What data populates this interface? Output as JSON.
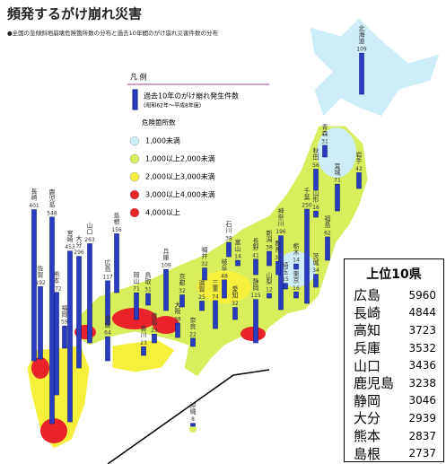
{
  "header": {
    "title": "頻発するがけ崩れ災害",
    "subtitle": "●全国の急傾斜地崩壊危険箇所数の分布と過去10年間のがけ崩れ災害件数の分布"
  },
  "legend": {
    "title": "凡 例",
    "bar_label": "過去10年のがけ崩れ発生件数",
    "bar_period": "(昭和62年～平成8年度)",
    "class_title": "危険箇所数",
    "classes": [
      {
        "label": "1,000未満",
        "color": "#cdeef8"
      },
      {
        "label": "1,000以上2,000未満",
        "color": "#d8ee5c"
      },
      {
        "label": "2,000以上3,000未満",
        "color": "#f6f03c"
      },
      {
        "label": "3,000以上4,000未満",
        "color": "#e8232a"
      },
      {
        "label": "4,000以上",
        "color": "#e8232a"
      }
    ]
  },
  "prefectures": [
    {
      "name": "北海道",
      "value": 109
    },
    {
      "name": "青森",
      "value": 31
    },
    {
      "name": "秋田",
      "value": 56
    },
    {
      "name": "岩手",
      "value": 42
    },
    {
      "name": "宮城",
      "value": 71
    },
    {
      "name": "山形",
      "value": 16
    },
    {
      "name": "福島",
      "value": 62
    },
    {
      "name": "新潟",
      "value": 38
    },
    {
      "name": "神奈川",
      "value": 196
    },
    {
      "name": "千葉",
      "value": 250
    },
    {
      "name": "茨城",
      "value": 34
    },
    {
      "name": "栃木",
      "value": 14
    },
    {
      "name": "群馬",
      "value": 35
    },
    {
      "name": "埼玉",
      "value": 15
    },
    {
      "name": "東京",
      "value": 16
    },
    {
      "name": "長野",
      "value": 41
    },
    {
      "name": "山梨",
      "value": 12
    },
    {
      "name": "富山",
      "value": 14
    },
    {
      "name": "石川",
      "value": 38
    },
    {
      "name": "福井",
      "value": 32
    },
    {
      "name": "岐阜",
      "value": 48
    },
    {
      "name": "静岡",
      "value": 115
    },
    {
      "name": "愛知",
      "value": 32
    },
    {
      "name": "三重",
      "value": 74
    },
    {
      "name": "滋賀",
      "value": 25
    },
    {
      "name": "京都",
      "value": 32
    },
    {
      "name": "奈良",
      "value": 22
    },
    {
      "name": "大阪",
      "value": 38
    },
    {
      "name": "兵庫",
      "value": 109
    },
    {
      "name": "鳥取",
      "value": 31
    },
    {
      "name": "島根",
      "value": 156
    },
    {
      "name": "岡山",
      "value": 71
    },
    {
      "name": "広島",
      "value": 117
    },
    {
      "name": "山口",
      "value": 263
    },
    {
      "name": "香川",
      "value": 23
    },
    {
      "name": "徳島",
      "value": 23
    },
    {
      "name": "愛媛",
      "value": 64
    },
    {
      "name": "福岡",
      "value": 59
    },
    {
      "name": "大分",
      "value": 296
    },
    {
      "name": "佐賀",
      "value": 192
    },
    {
      "name": "長崎",
      "value": 401
    },
    {
      "name": "熊本",
      "value": 272
    },
    {
      "name": "宮崎",
      "value": 453
    },
    {
      "name": "鹿児島",
      "value": 548
    },
    {
      "name": "沖縄",
      "value": 8
    }
  ],
  "top10": {
    "title": "上位10県",
    "rows": [
      {
        "name": "広島",
        "value": 5960
      },
      {
        "name": "長崎",
        "value": 4844
      },
      {
        "name": "高知",
        "value": 3723
      },
      {
        "name": "兵庫",
        "value": 3532
      },
      {
        "name": "山口",
        "value": 3436
      },
      {
        "name": "鹿児島",
        "value": 3238
      },
      {
        "name": "静岡",
        "value": 3046
      },
      {
        "name": "大分",
        "value": 2939
      },
      {
        "name": "熊本",
        "value": 2837
      },
      {
        "name": "島根",
        "value": 2737
      }
    ]
  }
}
